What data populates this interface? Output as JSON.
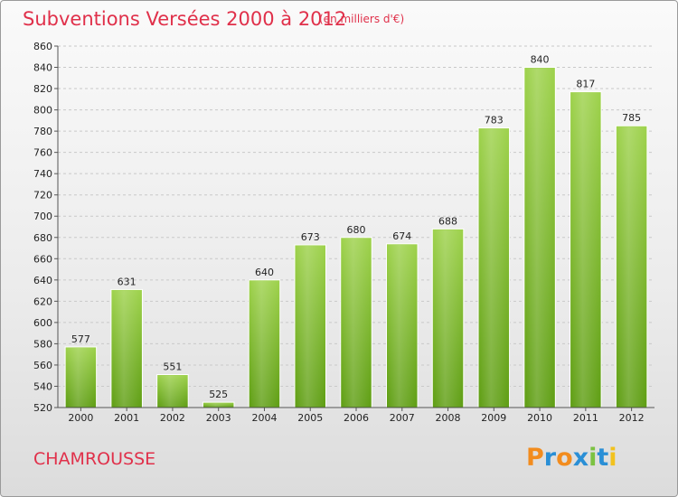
{
  "chart_data": {
    "type": "bar",
    "title": "Subventions Versées 2000 à 2012",
    "subtitle": "(en milliers d'€)",
    "categories": [
      "2000",
      "2001",
      "2002",
      "2003",
      "2004",
      "2005",
      "2006",
      "2007",
      "2008",
      "2009",
      "2010",
      "2011",
      "2012"
    ],
    "values": [
      577,
      631,
      551,
      525,
      640,
      673,
      680,
      674,
      688,
      783,
      840,
      817,
      785
    ],
    "ylim": [
      520,
      860
    ],
    "yticks": [
      520,
      540,
      560,
      580,
      600,
      620,
      640,
      660,
      680,
      700,
      720,
      740,
      760,
      780,
      800,
      820,
      840,
      860
    ],
    "grid": true,
    "bar_color": "#7fbf2e"
  },
  "commune": "CHAMROUSSE",
  "logo": {
    "letters": [
      {
        "ch": "P",
        "color": "#f28c1e"
      },
      {
        "ch": "r",
        "color": "#2a8fd6"
      },
      {
        "ch": "o",
        "color": "#f28c1e"
      },
      {
        "ch": "x",
        "color": "#2a8fd6"
      },
      {
        "ch": "i",
        "color": "#7cc242"
      },
      {
        "ch": "t",
        "color": "#2a8fd6"
      },
      {
        "ch": "i",
        "color": "#f2c21e"
      }
    ]
  },
  "colors": {
    "title": "#e0304a",
    "bar_top": "#9ed24c",
    "bar_bottom": "#5f9e14"
  }
}
